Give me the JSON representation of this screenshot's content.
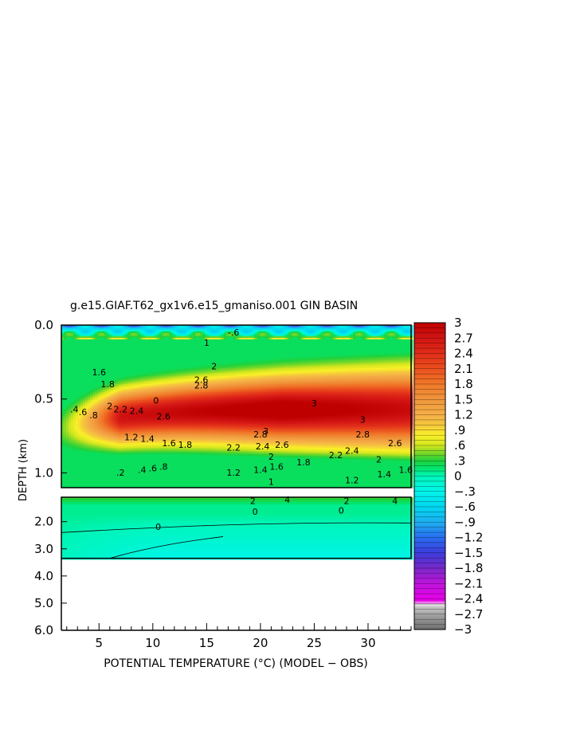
{
  "chart_data": {
    "type": "heatmap",
    "title": "g.e15.GIAF.T62_gx1v6.e15_gmaniso.001 GIN BASIN",
    "xlabel": "POTENTIAL TEMPERATURE (°C) (MODEL − OBS)",
    "ylabel": "DEPTH (km)",
    "xlim": [
      1.5,
      34
    ],
    "x_ticks": [
      "5",
      "10",
      "15",
      "20",
      "25",
      "30"
    ],
    "x_tick_values": [
      5,
      10,
      15,
      20,
      25,
      30
    ],
    "upper_panel": {
      "ylim": [
        0,
        1.1
      ],
      "y_ticks": [
        "0.0",
        "0.5",
        "1.0"
      ],
      "y_tick_values": [
        0,
        0.5,
        1.0
      ]
    },
    "lower_panel": {
      "ylim": [
        1.1,
        6.0
      ],
      "y_ticks": [
        "2.0",
        "3.0",
        "4.0",
        "5.0",
        "6.0"
      ],
      "y_tick_values": [
        2,
        3,
        4,
        5,
        6
      ]
    },
    "data_bottom_depth_km": 3.35,
    "colorbar": {
      "range": [
        -3,
        3
      ],
      "labels": [
        "3",
        "2.7",
        "2.4",
        "2.1",
        "1.8",
        "1.5",
        "1.2",
        ".9",
        ".6",
        ".3",
        "0",
        "−.3",
        "−.6",
        "−.9",
        "−1.2",
        "−1.5",
        "−1.8",
        "−2.1",
        "−2.4",
        "−2.7",
        "−3"
      ],
      "label_values": [
        3,
        2.7,
        2.4,
        2.1,
        1.8,
        1.5,
        1.2,
        0.9,
        0.6,
        0.3,
        0,
        -0.3,
        -0.6,
        -0.9,
        -1.2,
        -1.5,
        -1.8,
        -2.1,
        -2.4,
        -2.7,
        -3
      ]
    },
    "contour_labels_upper": [
      {
        "text": "3",
        "x": 25,
        "y": 0.55
      },
      {
        "text": "3",
        "x": 29.5,
        "y": 0.66
      },
      {
        "text": "2.8",
        "x": 29.5,
        "y": 0.76
      },
      {
        "text": "2.8",
        "x": 20,
        "y": 0.76
      },
      {
        "text": "3",
        "x": 20.5,
        "y": 0.74
      },
      {
        "text": "2.6",
        "x": 32.5,
        "y": 0.82
      },
      {
        "text": "2.6",
        "x": 22,
        "y": 0.83
      },
      {
        "text": "2.4",
        "x": 28.5,
        "y": 0.87
      },
      {
        "text": "2.4",
        "x": 20.2,
        "y": 0.84
      },
      {
        "text": "2.2",
        "x": 17.5,
        "y": 0.85
      },
      {
        "text": "2.2",
        "x": 27,
        "y": 0.9
      },
      {
        "text": "2",
        "x": 31,
        "y": 0.93
      },
      {
        "text": "2",
        "x": 21,
        "y": 0.91
      },
      {
        "text": "1.8",
        "x": 24,
        "y": 0.95
      },
      {
        "text": "1.6",
        "x": 21.5,
        "y": 0.98
      },
      {
        "text": "1.6",
        "x": 33.5,
        "y": 1.0
      },
      {
        "text": "1.4",
        "x": 31.5,
        "y": 1.03
      },
      {
        "text": "1.4",
        "x": 20,
        "y": 1.0
      },
      {
        "text": "1.2",
        "x": 17.5,
        "y": 1.02
      },
      {
        "text": "1.2",
        "x": 28.5,
        "y": 1.07
      },
      {
        "text": "1",
        "x": 21,
        "y": 1.08
      },
      {
        "text": "1.8",
        "x": 13,
        "y": 0.83
      },
      {
        "text": "1.6",
        "x": 11.5,
        "y": 0.82
      },
      {
        "text": "1.4",
        "x": 9.5,
        "y": 0.79
      },
      {
        "text": "1.2",
        "x": 8,
        "y": 0.78
      },
      {
        "text": "2.6",
        "x": 11,
        "y": 0.64
      },
      {
        "text": "2.4",
        "x": 8.5,
        "y": 0.6
      },
      {
        "text": "2.2",
        "x": 7,
        "y": 0.59
      },
      {
        "text": "2",
        "x": 6,
        "y": 0.57
      },
      {
        "text": "0",
        "x": 10.3,
        "y": 0.53
      },
      {
        "text": ".8",
        "x": 11,
        "y": 0.98
      },
      {
        "text": ".6",
        "x": 10,
        "y": 0.99
      },
      {
        "text": ".4",
        "x": 9,
        "y": 1.0
      },
      {
        "text": ".2",
        "x": 7,
        "y": 1.02
      },
      {
        "text": ".8",
        "x": 4.5,
        "y": 0.63
      },
      {
        "text": ".6",
        "x": 3.5,
        "y": 0.61
      },
      {
        "text": ".4",
        "x": 2.7,
        "y": 0.59
      },
      {
        "text": "1.6",
        "x": 5,
        "y": 0.34
      },
      {
        "text": "1.8",
        "x": 5.8,
        "y": 0.42
      },
      {
        "text": "-.6",
        "x": 17.5,
        "y": 0.07
      },
      {
        "text": "2",
        "x": 15.7,
        "y": 0.3
      },
      {
        "text": "2.8",
        "x": 14.5,
        "y": 0.43
      },
      {
        "text": "2.6",
        "x": 14.5,
        "y": 0.39
      },
      {
        "text": "1",
        "x": 15,
        "y": 0.14
      }
    ],
    "contour_labels_lower": [
      {
        "text": "0",
        "x": 10.5,
        "y": 2.3
      },
      {
        "text": "0",
        "x": 19.5,
        "y": 1.75
      },
      {
        "text": "0",
        "x": 27.5,
        "y": 1.7
      },
      {
        "text": "2",
        "x": 19.3,
        "y": 1.35
      },
      {
        "text": "4",
        "x": 22.5,
        "y": 1.3
      },
      {
        "text": "4",
        "x": 32.5,
        "y": 1.35
      },
      {
        "text": "2",
        "x": 28,
        "y": 1.35
      }
    ]
  }
}
